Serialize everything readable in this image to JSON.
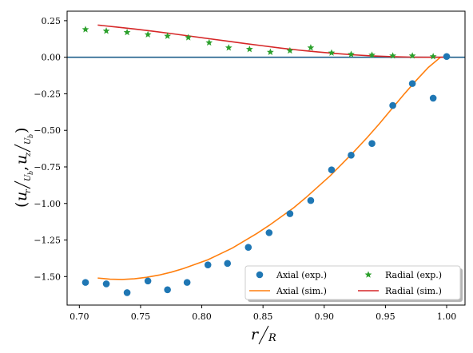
{
  "chart_data": {
    "type": "scatter",
    "xlabel": "r/R",
    "ylabel": "(u_r/U_b, u_z/U_b)",
    "xlim": [
      0.69,
      1.015
    ],
    "ylim": [
      -1.695,
      0.315
    ],
    "xticks": [
      0.7,
      0.75,
      0.8,
      0.85,
      0.9,
      0.95,
      1.0
    ],
    "xtick_labels": [
      "0.70",
      "0.75",
      "0.80",
      "0.85",
      "0.90",
      "0.95",
      "1.00"
    ],
    "yticks": [
      0.25,
      0.0,
      -0.25,
      -0.5,
      -0.75,
      -1.0,
      -1.25,
      -1.5
    ],
    "ytick_labels": [
      "0.25",
      "0.00",
      "−0.25",
      "−0.50",
      "−0.75",
      "−1.00",
      "−1.25",
      "−1.50"
    ],
    "reference_line": {
      "y": 0,
      "color": "#1f5f8b"
    },
    "legend": {
      "placement": "lower-right",
      "columns": 2
    },
    "series": [
      {
        "name": "Axial (exp.)",
        "kind": "scatter",
        "marker": "circle",
        "color": "#1f77b4",
        "x": [
          0.705,
          0.722,
          0.739,
          0.756,
          0.772,
          0.788,
          0.805,
          0.821,
          0.838,
          0.855,
          0.872,
          0.889,
          0.906,
          0.922,
          0.939,
          0.956,
          0.972,
          0.989,
          1.0
        ],
        "y": [
          -1.54,
          -1.55,
          -1.61,
          -1.53,
          -1.59,
          -1.54,
          -1.42,
          -1.41,
          -1.3,
          -1.2,
          -1.07,
          -0.98,
          -0.77,
          -0.67,
          -0.59,
          -0.33,
          -0.18,
          -0.28,
          0.005
        ]
      },
      {
        "name": "Axial (sim.)",
        "kind": "line",
        "color": "#ff7f0e",
        "x": [
          0.715,
          0.725,
          0.735,
          0.745,
          0.755,
          0.765,
          0.775,
          0.785,
          0.795,
          0.805,
          0.815,
          0.825,
          0.835,
          0.845,
          0.855,
          0.865,
          0.875,
          0.885,
          0.895,
          0.905,
          0.915,
          0.925,
          0.935,
          0.945,
          0.955,
          0.965,
          0.975,
          0.985,
          0.995,
          1.0
        ],
        "y": [
          -1.51,
          -1.518,
          -1.52,
          -1.515,
          -1.505,
          -1.49,
          -1.47,
          -1.445,
          -1.415,
          -1.385,
          -1.345,
          -1.305,
          -1.255,
          -1.205,
          -1.15,
          -1.09,
          -1.03,
          -0.96,
          -0.885,
          -0.81,
          -0.725,
          -0.64,
          -0.55,
          -0.455,
          -0.355,
          -0.255,
          -0.16,
          -0.07,
          0.0,
          0.0
        ]
      },
      {
        "name": "Radial (exp.)",
        "kind": "scatter",
        "marker": "star",
        "color": "#2ca02c",
        "x": [
          0.705,
          0.722,
          0.739,
          0.756,
          0.772,
          0.789,
          0.806,
          0.822,
          0.839,
          0.856,
          0.872,
          0.889,
          0.906,
          0.922,
          0.939,
          0.956,
          0.972,
          0.989
        ],
        "y": [
          0.19,
          0.18,
          0.17,
          0.155,
          0.145,
          0.135,
          0.1,
          0.065,
          0.055,
          0.035,
          0.045,
          0.065,
          0.03,
          0.02,
          0.015,
          0.01,
          0.01,
          0.005
        ]
      },
      {
        "name": "Radial (sim.)",
        "kind": "line",
        "color": "#d62728",
        "x": [
          0.715,
          0.73,
          0.745,
          0.76,
          0.775,
          0.79,
          0.805,
          0.82,
          0.835,
          0.85,
          0.865,
          0.88,
          0.895,
          0.91,
          0.925,
          0.94,
          0.955,
          0.97,
          0.985,
          1.0
        ],
        "y": [
          0.22,
          0.207,
          0.193,
          0.178,
          0.162,
          0.145,
          0.128,
          0.111,
          0.094,
          0.078,
          0.062,
          0.048,
          0.036,
          0.025,
          0.016,
          0.009,
          0.004,
          0.001,
          0.0,
          0.0
        ]
      }
    ]
  }
}
